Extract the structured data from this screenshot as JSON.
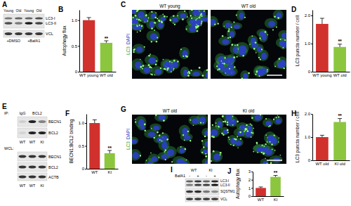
{
  "chart_data": [
    {
      "type": "bar",
      "panel": "B",
      "y_label": "Autophagy flux",
      "categories": [
        "WT young",
        "WT old"
      ],
      "values": [
        1.0,
        0.56
      ],
      "errors": [
        0.05,
        0.04
      ],
      "annotations": [
        null,
        "**"
      ],
      "colors": [
        "#d0312d",
        "#8cc63f"
      ],
      "ylim": [
        0,
        1.2
      ],
      "yticks": [
        0,
        0.5,
        {
          "value": 1,
          "label": "1.0"
        }
      ]
    },
    {
      "type": "bar",
      "panel": "D",
      "y_label": "LC3 puncta number / cell",
      "categories": [
        "WT young",
        "WT old"
      ],
      "values": [
        1.7,
        0.88
      ],
      "errors": [
        0.2,
        0.1
      ],
      "annotations": [
        null,
        "**"
      ],
      "colors": [
        "#d0312d",
        "#8cc63f"
      ],
      "ylim": [
        0,
        2.2
      ],
      "yticks": [
        0,
        {
          "value": 1,
          "label": "1.0"
        },
        {
          "value": 2,
          "label": "2.0"
        }
      ]
    },
    {
      "type": "bar",
      "panel": "F",
      "y_label": "BECN1:BCL2 binding",
      "categories": [
        "WT",
        "KI"
      ],
      "values": [
        1.0,
        0.34
      ],
      "errors": [
        0.07,
        0.06
      ],
      "annotations": [
        null,
        "**"
      ],
      "colors": [
        "#d0312d",
        "#8cc63f"
      ],
      "ylim": [
        0,
        1.2
      ],
      "yticks": [
        0,
        0.5,
        {
          "value": 1,
          "label": "1.0"
        }
      ]
    },
    {
      "type": "bar",
      "panel": "H",
      "y_label": "LC3 puncta number / cell",
      "categories": [
        "WT old",
        "KI old"
      ],
      "values": [
        1.0,
        1.65
      ],
      "errors": [
        0.08,
        0.15
      ],
      "annotations": [
        null,
        "**"
      ],
      "colors": [
        "#d0312d",
        "#8cc63f"
      ],
      "ylim": [
        0,
        2
      ],
      "yticks": [
        0,
        {
          "value": 1,
          "label": "1.0"
        },
        {
          "value": 2,
          "label": "2.0"
        }
      ]
    },
    {
      "type": "bar",
      "panel": "J",
      "y_label": "Autophagy flux",
      "categories": [
        "WT",
        "KI"
      ],
      "values": [
        1.0,
        2.35
      ],
      "errors": [
        0.12,
        0.18
      ],
      "annotations": [
        null,
        "**"
      ],
      "colors": [
        "#d0312d",
        "#8cc63f"
      ],
      "ylim": [
        0,
        3
      ],
      "yticks": [
        0,
        1,
        2,
        3
      ]
    }
  ],
  "images": [
    {
      "panel": "C",
      "channel_labels": [
        "LC3",
        "DAPI"
      ],
      "titles": [
        "WT young",
        "WT old"
      ]
    },
    {
      "panel": "G",
      "channel_labels": [
        "LC3",
        "DAPI"
      ],
      "titles": [
        "WT old",
        "KI old"
      ]
    }
  ],
  "blots": [
    {
      "panel": "A",
      "lanes": [
        "Young",
        "Old",
        "Young",
        "Old"
      ],
      "treatments": [
        "+DMSO",
        "+BafA1"
      ],
      "rows": [
        [
          "LC3-I",
          "LC3-II"
        ],
        [
          "VCL"
        ]
      ]
    },
    {
      "panel": "E",
      "ip_label": "IP:",
      "ip_groups": [
        "IgG",
        "BCL2"
      ],
      "wcl_label": "WCL:",
      "lanes": [
        "WT",
        "WT",
        "KI"
      ],
      "ip_rows": [
        "BECN1",
        "BCL2"
      ],
      "wcl_rows": [
        "BECN1",
        "BCL2",
        "ACTB"
      ]
    },
    {
      "panel": "I",
      "groups": [
        "WT",
        "KI"
      ],
      "treatment_label": "BafA1",
      "treatment": [
        "-",
        "+",
        "-",
        "+"
      ],
      "rows": [
        [
          "LC3-I",
          "LC3-II"
        ],
        [
          "SQSTM1"
        ],
        [
          "VCL"
        ]
      ]
    }
  ]
}
